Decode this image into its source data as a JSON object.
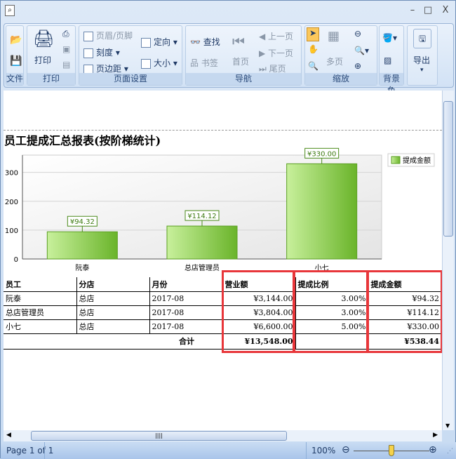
{
  "window": {
    "controls": [
      "–",
      "□",
      "X"
    ]
  },
  "ribbon": {
    "groups": [
      {
        "label": "文件"
      },
      {
        "label": "打印",
        "items": [
          "打印"
        ]
      },
      {
        "label": "页面设置",
        "items": [
          "页眉/页脚",
          "刻度",
          "页边距",
          "定向",
          "大小"
        ]
      },
      {
        "label": "导航",
        "items": [
          "查找",
          "书签",
          "首页",
          "上一页",
          "下一页",
          "尾页"
        ]
      },
      {
        "label": "缩放",
        "items": [
          "多页"
        ]
      },
      {
        "label": "背景色"
      },
      {
        "label": "导出",
        "items": [
          "导出"
        ]
      }
    ]
  },
  "report": {
    "title": "员工提成汇总报表(按阶梯统计)",
    "table": {
      "headers": [
        "员工",
        "分店",
        "月份",
        "营业额",
        "提成比例",
        "提成金额"
      ],
      "rows": [
        [
          "阮泰",
          "总店",
          "2017-08",
          "¥3,144.00",
          "3.00%",
          "¥94.32"
        ],
        [
          "总店管理员",
          "总店",
          "2017-08",
          "¥3,804.00",
          "3.00%",
          "¥114.12"
        ],
        [
          "小七",
          "总店",
          "2017-08",
          "¥6,600.00",
          "5.00%",
          "¥330.00"
        ]
      ],
      "total": {
        "label": "合计",
        "revenue": "¥13,548.00",
        "commission": "¥538.44"
      }
    }
  },
  "chart_data": {
    "type": "bar",
    "categories": [
      "阮泰",
      "总店管理员",
      "小七"
    ],
    "series": [
      {
        "name": "提成金额",
        "values": [
          94.32,
          114.12,
          330.0
        ],
        "labels": [
          "¥94.32",
          "¥114.12",
          "¥330.00"
        ]
      }
    ],
    "ylim": [
      0,
      360
    ],
    "yticks": [
      0,
      100,
      200,
      300
    ],
    "grid": true,
    "legend": "top-right",
    "color": "#6ab42a"
  },
  "status": {
    "page": "Page 1 of 1",
    "zoom": "100%",
    "zoom_level": 100
  }
}
